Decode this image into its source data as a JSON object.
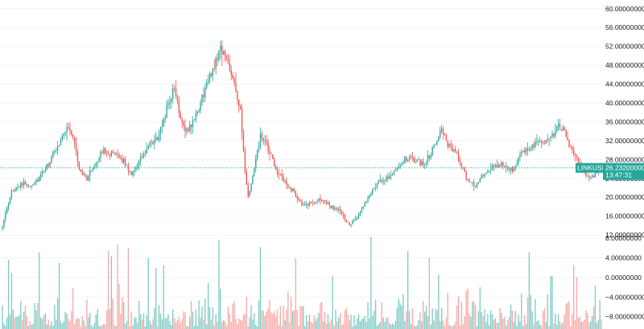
{
  "chart_data": {
    "type": "candlestick",
    "symbol": "LINKUSD",
    "last_price": "26.23200000",
    "countdown": "13:47:31",
    "colors": {
      "up": "#26a69a",
      "down": "#ef5350",
      "volume_up": "#80cbc4",
      "volume_down": "#f7a9a7",
      "price_line": "#26a69a",
      "grid": "#f0f3fa",
      "axis_text": "#131722"
    },
    "price_axis": {
      "ylim": [
        11.5,
        61.5
      ],
      "ticks": [
        "60.00000000",
        "56.00000000",
        "52.00000000",
        "48.00000000",
        "44.00000000",
        "40.00000000",
        "36.00000000",
        "32.00000000",
        "28.00000000",
        "24.00000000",
        "20.00000000",
        "16.00000000",
        "12.00000000"
      ],
      "tick_values": [
        60,
        56,
        52,
        48,
        44,
        40,
        36,
        32,
        28,
        24,
        20,
        16,
        12
      ]
    },
    "volume_axis": {
      "ylim": [
        -10.5,
        8.0
      ],
      "ticks": [
        "8.00000000",
        "4.00000000",
        "0.00000000",
        "−4.00000000",
        "−8.00000000"
      ],
      "tick_values": [
        8,
        4,
        0,
        -4,
        -8
      ]
    },
    "grid": true,
    "close_anchors": [
      [
        0,
        14
      ],
      [
        6,
        21
      ],
      [
        12,
        23
      ],
      [
        18,
        22.5
      ],
      [
        24,
        24
      ],
      [
        30,
        27
      ],
      [
        36,
        31
      ],
      [
        42,
        35
      ],
      [
        46,
        33
      ],
      [
        50,
        26
      ],
      [
        55,
        24
      ],
      [
        60,
        27
      ],
      [
        66,
        30
      ],
      [
        72,
        29
      ],
      [
        78,
        28
      ],
      [
        84,
        25
      ],
      [
        90,
        28
      ],
      [
        96,
        31
      ],
      [
        102,
        33
      ],
      [
        108,
        40
      ],
      [
        112,
        43
      ],
      [
        116,
        37
      ],
      [
        120,
        34
      ],
      [
        126,
        37
      ],
      [
        132,
        43
      ],
      [
        138,
        48
      ],
      [
        142,
        52
      ],
      [
        146,
        49
      ],
      [
        150,
        46
      ],
      [
        155,
        38
      ],
      [
        158,
        25
      ],
      [
        160,
        20
      ],
      [
        164,
        26
      ],
      [
        168,
        33
      ],
      [
        172,
        31
      ],
      [
        178,
        26
      ],
      [
        184,
        23
      ],
      [
        190,
        21
      ],
      [
        196,
        18
      ],
      [
        202,
        19
      ],
      [
        208,
        19.5
      ],
      [
        214,
        18
      ],
      [
        220,
        17
      ],
      [
        226,
        14
      ],
      [
        232,
        16
      ],
      [
        238,
        20
      ],
      [
        244,
        23
      ],
      [
        250,
        24
      ],
      [
        256,
        26
      ],
      [
        262,
        28
      ],
      [
        268,
        28
      ],
      [
        274,
        27
      ],
      [
        280,
        30
      ],
      [
        286,
        35
      ],
      [
        290,
        31
      ],
      [
        296,
        29
      ],
      [
        302,
        24
      ],
      [
        308,
        22.5
      ],
      [
        314,
        25
      ],
      [
        320,
        26.5
      ],
      [
        326,
        27
      ],
      [
        332,
        26
      ],
      [
        338,
        29
      ],
      [
        344,
        31
      ],
      [
        350,
        31.5
      ],
      [
        356,
        32
      ],
      [
        362,
        35
      ],
      [
        366,
        34
      ],
      [
        370,
        30
      ],
      [
        374,
        28
      ],
      [
        378,
        26
      ],
      [
        382,
        24
      ],
      [
        386,
        25
      ],
      [
        390,
        26.2
      ]
    ]
  }
}
